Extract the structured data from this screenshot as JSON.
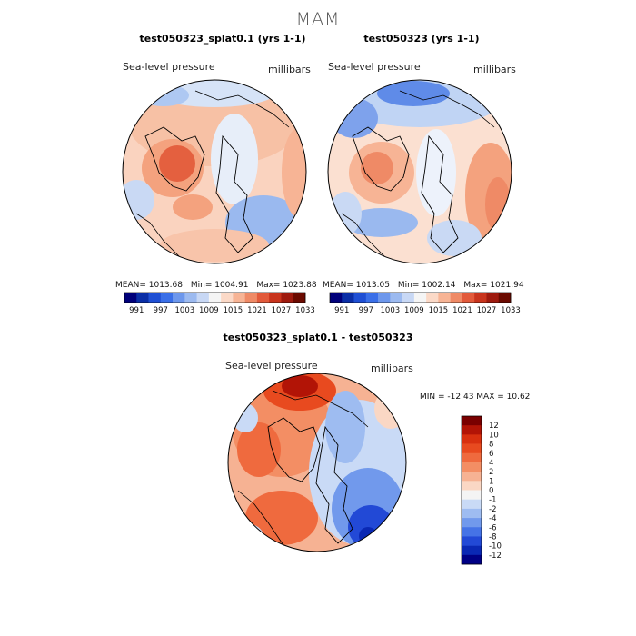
{
  "figure": {
    "season": "MAM",
    "panels": [
      {
        "title": "test050323_splat0.1 (yrs 1-1)",
        "variable": "Sea-level pressure",
        "units": "millibars",
        "stats": {
          "mean": "1013.68",
          "min": "1004.91",
          "max": "1023.88"
        }
      },
      {
        "title": "test050323 (yrs 1-1)",
        "variable": "Sea-level pressure",
        "units": "millibars",
        "stats": {
          "mean": "1013.05",
          "min": "1002.14",
          "max": "1021.94"
        }
      }
    ],
    "diff": {
      "title": "test050323_splat0.1 - test050323",
      "variable": "Sea-level pressure",
      "units": "millibars",
      "minmax_text": "MIN = -12.43  MAX = 10.62"
    },
    "colorbar_top": {
      "ticks": [
        "991",
        "997",
        "1003",
        "1009",
        "1015",
        "1021",
        "1027",
        "1033"
      ],
      "colors": [
        "#00007a",
        "#0a2ea6",
        "#1f4fd4",
        "#3a6fe8",
        "#6d97ec",
        "#9cbaf0",
        "#c8d8f5",
        "#f5f5f5",
        "#fbd9c7",
        "#f7b495",
        "#ef8a66",
        "#e25a3b",
        "#c8341d",
        "#9e1a0e",
        "#6b0a00"
      ]
    },
    "colorbar_diff": {
      "labels": [
        "12",
        "10",
        "8",
        "6",
        "4",
        "2",
        "1",
        "0",
        "-1",
        "-2",
        "-4",
        "-6",
        "-8",
        "-10",
        "-12"
      ],
      "colors": [
        "#7a0000",
        "#b21406",
        "#d8300f",
        "#e84a1f",
        "#ef6a3e",
        "#f38e64",
        "#f6b293",
        "#fad7c4",
        "#f4f4f4",
        "#c9daf6",
        "#9ebcf1",
        "#7199ec",
        "#4573e6",
        "#2249d6",
        "#0a28b4",
        "#000085"
      ]
    }
  }
}
